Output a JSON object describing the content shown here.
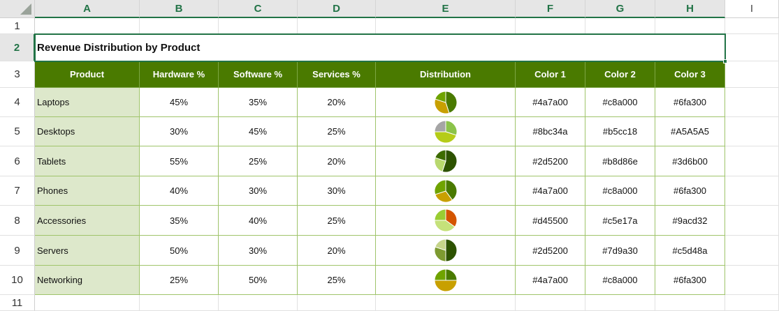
{
  "columns": [
    "A",
    "B",
    "C",
    "D",
    "E",
    "F",
    "G",
    "H",
    "I"
  ],
  "rows": [
    "1",
    "2",
    "3",
    "4",
    "5",
    "6",
    "7",
    "8",
    "9",
    "10",
    "11"
  ],
  "title": "Revenue Distribution by Product",
  "headers": [
    "Product",
    "Hardware %",
    "Software %",
    "Services %",
    "Distribution",
    "Color 1",
    "Color 2",
    "Color 3"
  ],
  "products": [
    {
      "name": "Laptops",
      "hardware": "45%",
      "software": "35%",
      "services": "20%",
      "c1": "#4a7a00",
      "c2": "#c8a000",
      "c3": "#6fa300",
      "shares": [
        45,
        35,
        20
      ]
    },
    {
      "name": "Desktops",
      "hardware": "30%",
      "software": "45%",
      "services": "25%",
      "c1": "#8bc34a",
      "c2": "#b5cc18",
      "c3": "#A5A5A5",
      "shares": [
        30,
        45,
        25
      ]
    },
    {
      "name": "Tablets",
      "hardware": "55%",
      "software": "25%",
      "services": "20%",
      "c1": "#2d5200",
      "c2": "#b8d86e",
      "c3": "#3d6b00",
      "shares": [
        55,
        25,
        20
      ]
    },
    {
      "name": "Phones",
      "hardware": "40%",
      "software": "30%",
      "services": "30%",
      "c1": "#4a7a00",
      "c2": "#c8a000",
      "c3": "#6fa300",
      "shares": [
        40,
        30,
        30
      ]
    },
    {
      "name": "Accessories",
      "hardware": "35%",
      "software": "40%",
      "services": "25%",
      "c1": "#d45500",
      "c2": "#c5e17a",
      "c3": "#9acd32",
      "shares": [
        35,
        40,
        25
      ]
    },
    {
      "name": "Servers",
      "hardware": "50%",
      "software": "30%",
      "services": "20%",
      "c1": "#2d5200",
      "c2": "#7d9a30",
      "c3": "#c5d48a",
      "shares": [
        50,
        30,
        20
      ]
    },
    {
      "name": "Networking",
      "hardware": "25%",
      "software": "50%",
      "services": "25%",
      "c1": "#4a7a00",
      "c2": "#c8a000",
      "c3": "#6fa300",
      "shares": [
        25,
        50,
        25
      ]
    }
  ],
  "colors": {
    "header_green": "#4a7a00",
    "product_bg": "#dde8cb",
    "excel_green": "#217346"
  }
}
